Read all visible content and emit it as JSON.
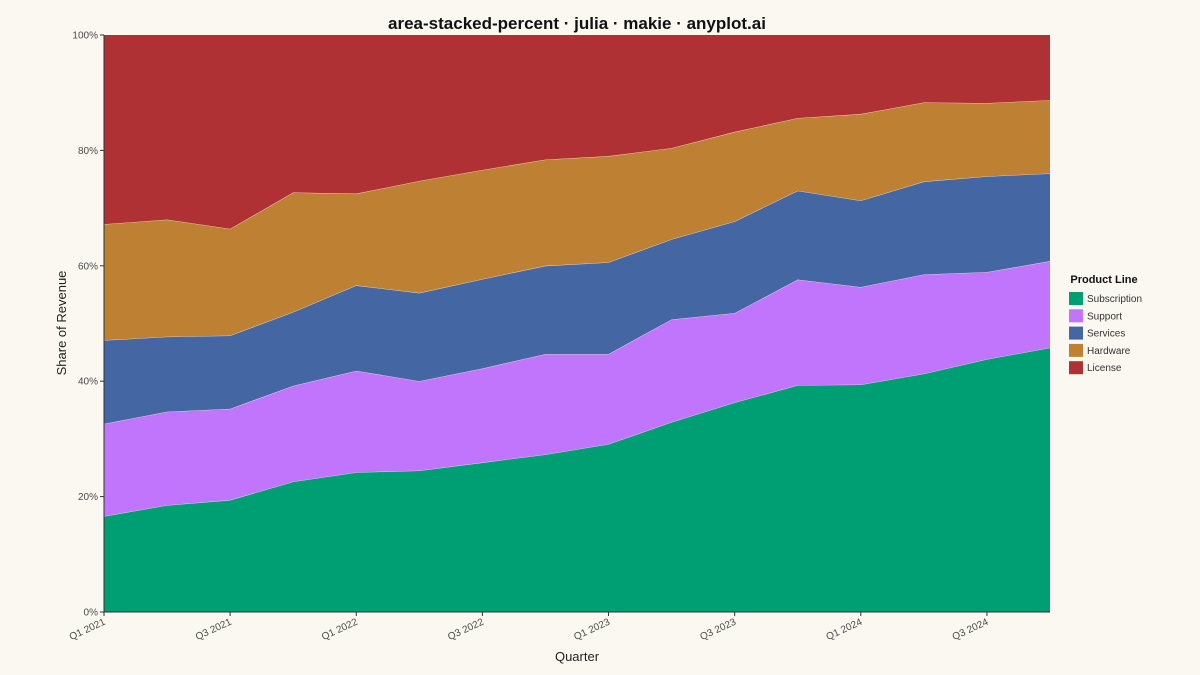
{
  "chart_data": {
    "type": "area",
    "stacked": "percent",
    "title": "area-stacked-percent · julia · makie · anyplot.ai",
    "xlabel": "Quarter",
    "ylabel": "Share of Revenue",
    "ylim": [
      0,
      100
    ],
    "yticks": [
      0,
      20,
      40,
      60,
      80,
      100
    ],
    "ytick_labels": [
      "0%",
      "20%",
      "40%",
      "60%",
      "80%",
      "100%"
    ],
    "grid": false,
    "legend_position": "right",
    "legend_title": "Product Line",
    "categories": [
      "Q1 2021",
      "Q2 2021",
      "Q3 2021",
      "Q4 2021",
      "Q1 2022",
      "Q2 2022",
      "Q3 2022",
      "Q4 2022",
      "Q1 2023",
      "Q2 2023",
      "Q3 2023",
      "Q4 2023",
      "Q1 2024",
      "Q2 2024",
      "Q3 2024",
      "Q4 2024"
    ],
    "xtick_labels": [
      "Q1 2021",
      "Q3 2021",
      "Q1 2022",
      "Q3 2022",
      "Q1 2023",
      "Q3 2023",
      "Q1 2024",
      "Q3 2024"
    ],
    "xtick_indices": [
      0,
      2,
      4,
      6,
      8,
      10,
      12,
      14
    ],
    "series": [
      {
        "name": "Subscription",
        "color": "#009E73",
        "values": [
          16.6,
          18.5,
          19.4,
          22.6,
          24.2,
          24.5,
          25.9,
          27.3,
          29.1,
          32.9,
          36.3,
          39.3,
          39.4,
          41.3,
          43.8,
          45.8
        ]
      },
      {
        "name": "Support",
        "color": "#C174FC",
        "values": [
          16.0,
          16.2,
          15.8,
          16.6,
          17.6,
          15.5,
          16.3,
          17.4,
          15.6,
          17.8,
          15.5,
          18.3,
          16.9,
          17.2,
          15.1,
          15.0
        ]
      },
      {
        "name": "Services",
        "color": "#4466A2",
        "values": [
          14.5,
          13.0,
          12.7,
          12.8,
          14.8,
          15.3,
          15.5,
          15.3,
          15.9,
          13.9,
          15.9,
          15.4,
          15.0,
          16.1,
          16.6,
          15.2
        ]
      },
      {
        "name": "Hardware",
        "color": "#BE8133",
        "values": [
          20.1,
          20.3,
          18.5,
          20.7,
          15.9,
          19.4,
          18.9,
          18.4,
          18.4,
          15.8,
          15.5,
          12.6,
          15.0,
          13.7,
          12.7,
          12.7
        ]
      },
      {
        "name": "License",
        "color": "#B03133",
        "values": [
          32.8,
          32.0,
          33.6,
          27.3,
          27.5,
          25.3,
          23.4,
          21.6,
          21.0,
          19.6,
          16.8,
          14.4,
          13.7,
          11.7,
          11.8,
          11.3
        ]
      }
    ]
  }
}
